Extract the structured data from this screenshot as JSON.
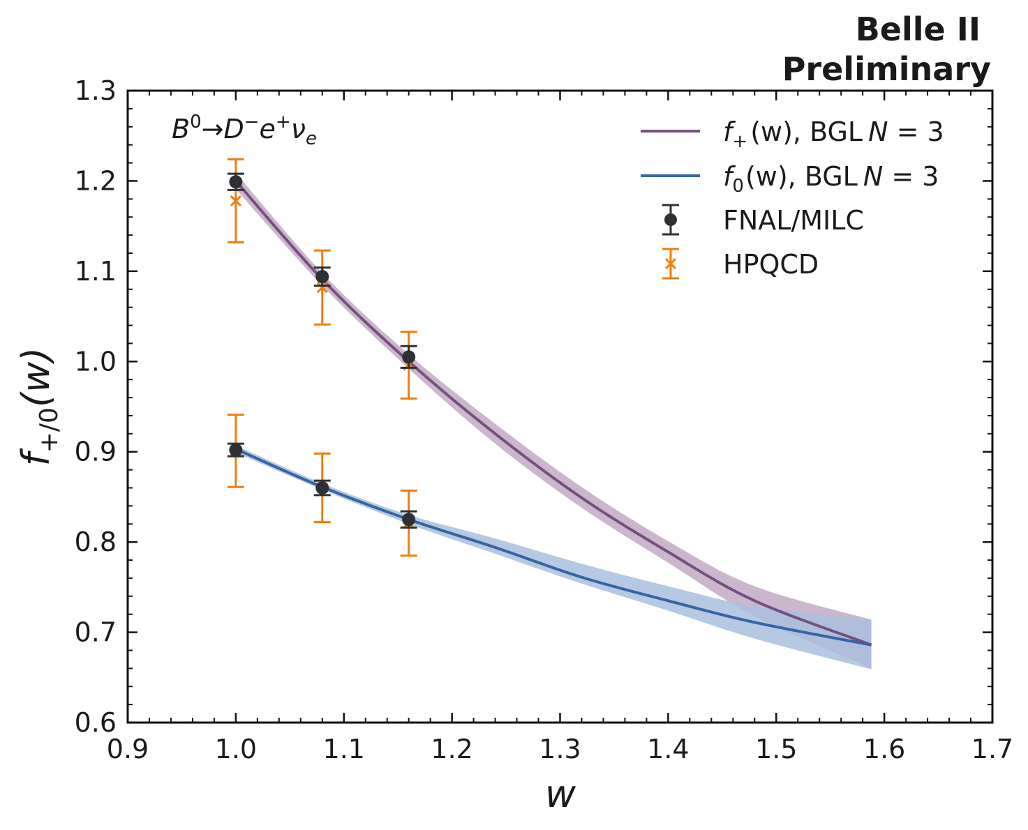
{
  "header": {
    "line1": "Belle II",
    "line2": "Preliminary"
  },
  "annotation": {
    "B": "B",
    "B_sup": "0",
    "arrow": "→",
    "D": "D",
    "D_sup": "−",
    "e": "e",
    "e_sup": "+",
    "nu": "ν",
    "nu_sub": "e"
  },
  "axes": {
    "xlabel": "w",
    "ylabel_main": "f",
    "ylabel_sub": "+/0",
    "ylabel_tail": "(w)"
  },
  "legend": {
    "fplus_f": "f",
    "fplus_sub": "+",
    "fplus_rest": "(w), BGL",
    "fplus_N": "N",
    "fplus_eq": " = 3",
    "f0_f": "f",
    "f0_sub": "0",
    "f0_rest": "(w), BGL",
    "f0_N": "N",
    "f0_eq": " = 3",
    "fnal": "FNAL/MILC",
    "hpqcd": "HPQCD"
  },
  "colors": {
    "fplus_line": "#76507f",
    "fplus_band": "#c3a9c6",
    "f0_line": "#3465a4",
    "f0_band": "#a8bfdd",
    "fnal": "#2d3133",
    "hpqcd": "#ef7d0f"
  },
  "chart_data": {
    "type": "line",
    "xlim": [
      0.9,
      1.7
    ],
    "ylim": [
      0.6,
      1.3
    ],
    "xticks": [
      "0.9",
      "1.0",
      "1.1",
      "1.2",
      "1.3",
      "1.4",
      "1.5",
      "1.6",
      "1.7"
    ],
    "yticks": [
      "0.6",
      "0.7",
      "0.8",
      "0.9",
      "1.0",
      "1.1",
      "1.2",
      "1.3"
    ],
    "xlabel": "w",
    "ylabel": "f+/0(w)",
    "curves": [
      {
        "name": "f+(w), BGL N = 3",
        "x": [
          1.0,
          1.08,
          1.16,
          1.24,
          1.32,
          1.4,
          1.48,
          1.588
        ],
        "y": [
          1.2,
          1.091,
          1.0,
          0.92,
          0.849,
          0.789,
          0.735,
          0.686
        ],
        "lo": [
          1.191,
          1.084,
          0.992,
          0.909,
          0.838,
          0.777,
          0.718,
          0.66
        ],
        "hi": [
          1.209,
          1.098,
          1.008,
          0.931,
          0.861,
          0.801,
          0.751,
          0.714
        ]
      },
      {
        "name": "f0(w), BGL N = 3",
        "x": [
          1.0,
          1.08,
          1.16,
          1.24,
          1.32,
          1.4,
          1.48,
          1.588
        ],
        "y": [
          0.903,
          0.861,
          0.825,
          0.794,
          0.761,
          0.735,
          0.711,
          0.686
        ],
        "lo": [
          0.899,
          0.858,
          0.82,
          0.787,
          0.754,
          0.724,
          0.693,
          0.659
        ],
        "hi": [
          0.907,
          0.865,
          0.83,
          0.804,
          0.776,
          0.751,
          0.729,
          0.714
        ]
      }
    ],
    "points": [
      {
        "name": "FNAL/MILC",
        "marker": "circle",
        "x": [
          1.0,
          1.08,
          1.16,
          1.0,
          1.08,
          1.16
        ],
        "y": [
          1.199,
          1.094,
          1.005,
          0.902,
          0.86,
          0.825
        ],
        "err": [
          0.009,
          0.01,
          0.012,
          0.007,
          0.008,
          0.009
        ]
      },
      {
        "name": "HPQCD",
        "marker": "x",
        "x": [
          1.0,
          1.08,
          1.16,
          1.0,
          1.08,
          1.16
        ],
        "y": [
          1.178,
          1.082,
          0.996,
          0.901,
          0.86,
          0.821
        ],
        "err": [
          0.046,
          0.041,
          0.037,
          0.04,
          0.038,
          0.036
        ]
      }
    ]
  }
}
